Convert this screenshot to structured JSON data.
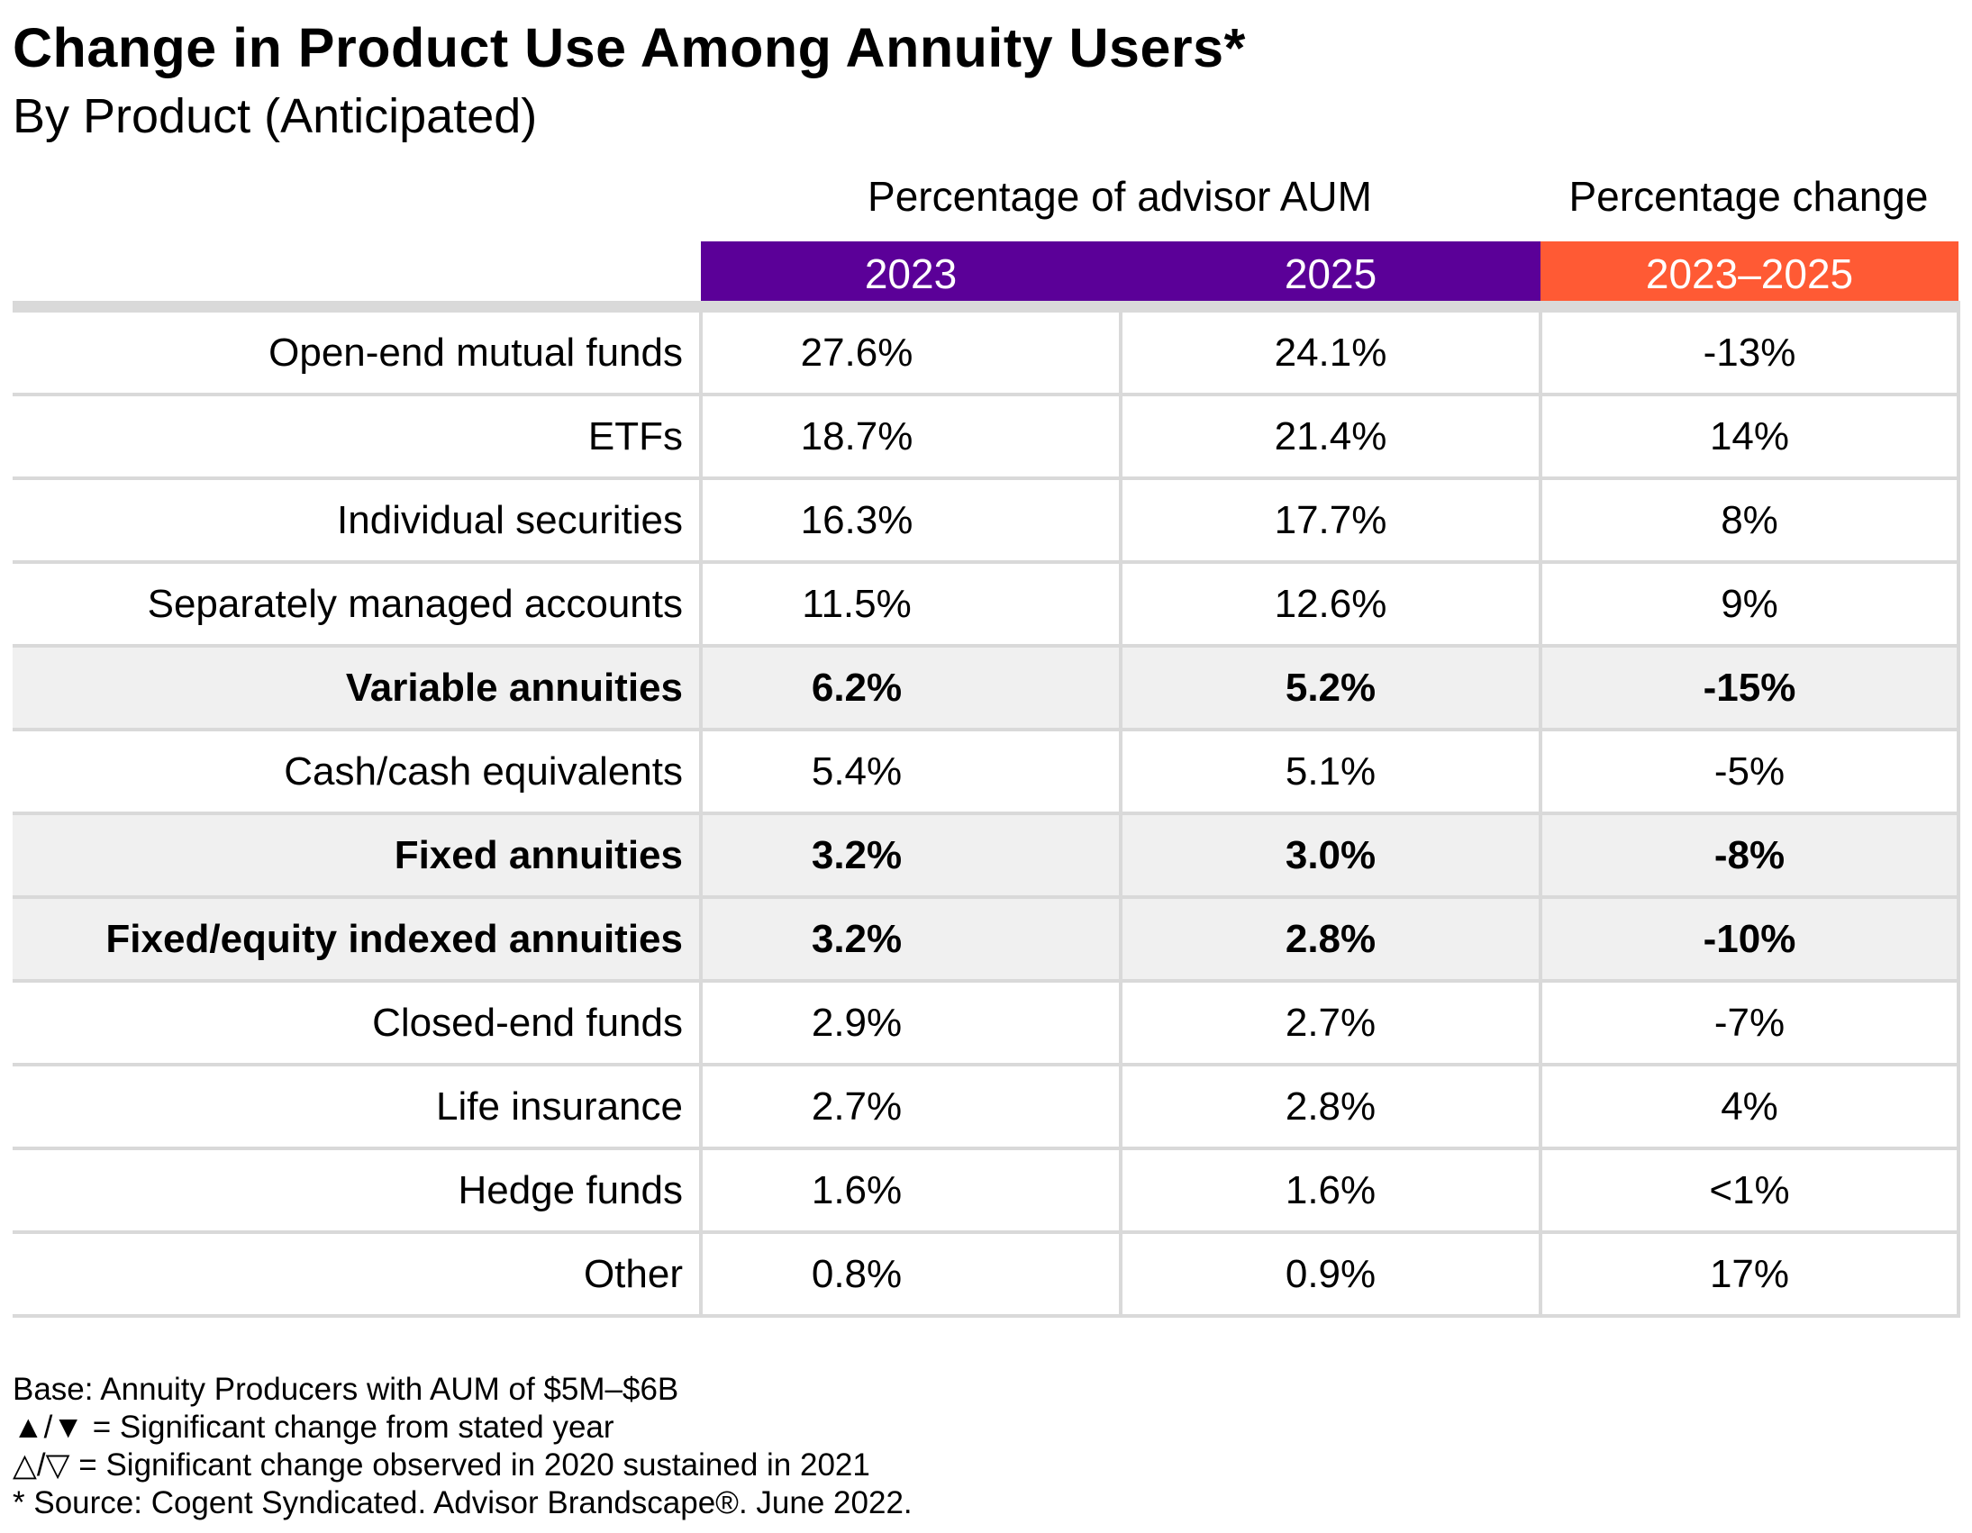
{
  "chart_data": {
    "type": "table",
    "title": "Change in Product Use Among Annuity Users*",
    "subtitle": "By Product (Anticipated)",
    "group_headers": [
      "Percentage of advisor AUM",
      "Percentage change"
    ],
    "columns": [
      "2023",
      "2025",
      "2023–2025"
    ],
    "header_colors": [
      "#5b0098",
      "#5b0098",
      "#ff5a34"
    ],
    "highlight_color": "#f0f0f0",
    "rows": [
      {
        "label": "Open-end mutual funds",
        "v2023": "27.6%",
        "v2025": "24.1%",
        "change": "-13%",
        "highlight": false
      },
      {
        "label": "ETFs",
        "v2023": "18.7%",
        "v2025": "21.4%",
        "change": "14%",
        "highlight": false
      },
      {
        "label": "Individual securities",
        "v2023": "16.3%",
        "v2025": "17.7%",
        "change": "8%",
        "highlight": false
      },
      {
        "label": "Separately managed accounts",
        "v2023": "11.5%",
        "v2025": "12.6%",
        "change": "9%",
        "highlight": false
      },
      {
        "label": "Variable annuities",
        "v2023": "6.2%",
        "v2025": "5.2%",
        "change": "-15%",
        "highlight": true
      },
      {
        "label": "Cash/cash equivalents",
        "v2023": "5.4%",
        "v2025": "5.1%",
        "change": "-5%",
        "highlight": false
      },
      {
        "label": "Fixed annuities",
        "v2023": "3.2%",
        "v2025": "3.0%",
        "change": "-8%",
        "highlight": true
      },
      {
        "label": "Fixed/equity indexed annuities",
        "v2023": "3.2%",
        "v2025": "2.8%",
        "change": "-10%",
        "highlight": true
      },
      {
        "label": "Closed-end funds",
        "v2023": "2.9%",
        "v2025": "2.7%",
        "change": "-7%",
        "highlight": false
      },
      {
        "label": "Life insurance",
        "v2023": "2.7%",
        "v2025": "2.8%",
        "change": "4%",
        "highlight": false
      },
      {
        "label": "Hedge funds",
        "v2023": "1.6%",
        "v2025": "1.6%",
        "change": "<1%",
        "highlight": false
      },
      {
        "label": "Other",
        "v2023": "0.8%",
        "v2025": "0.9%",
        "change": "17%",
        "highlight": false
      }
    ]
  },
  "notes": [
    "Base: Annuity Producers with AUM of $5M–$6B",
    "▲/▼ = Significant change from stated year",
    "△/▽ = Significant change observed in 2020 sustained in 2021",
    "* Source: Cogent Syndicated. Advisor Brandscape®. June 2022."
  ]
}
